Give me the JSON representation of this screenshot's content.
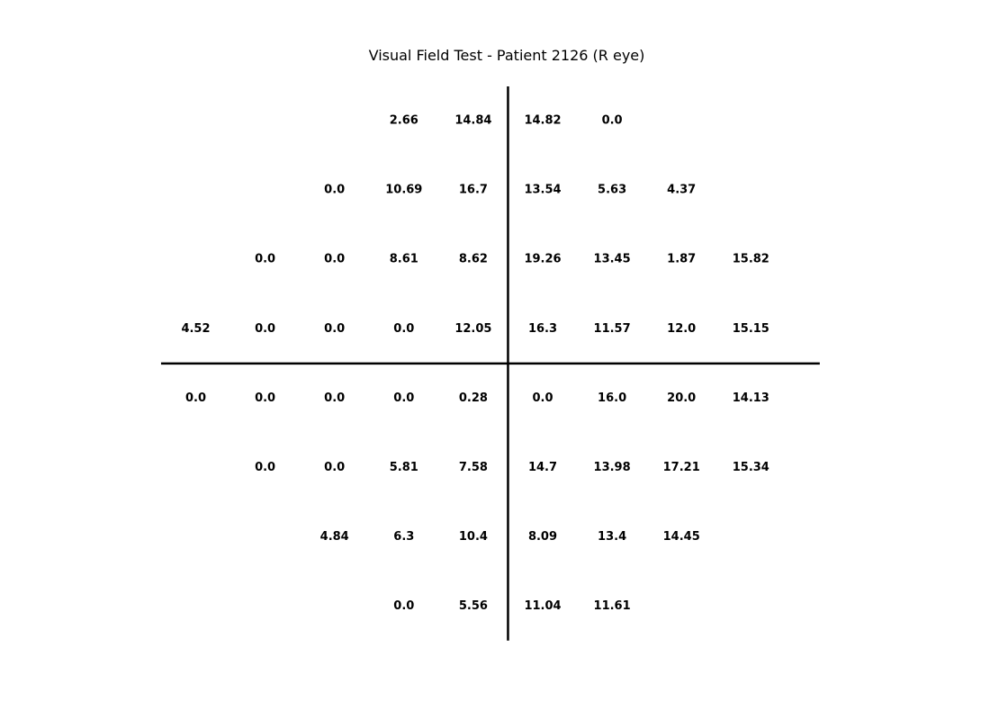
{
  "chart_data": {
    "type": "table",
    "title": "Visual Field Test - Patient 2126 (R eye)",
    "rows": [
      [
        null,
        null,
        null,
        "2.66",
        "14.84",
        "14.82",
        "0.0",
        null,
        null
      ],
      [
        null,
        null,
        "0.0",
        "10.69",
        "16.7",
        "13.54",
        "5.63",
        "4.37",
        null
      ],
      [
        null,
        "0.0",
        "0.0",
        "8.61",
        "8.62",
        "19.26",
        "13.45",
        "1.87",
        "15.82"
      ],
      [
        "4.52",
        "0.0",
        "0.0",
        "0.0",
        "12.05",
        "16.3",
        "11.57",
        "12.0",
        "15.15"
      ],
      [
        "0.0",
        "0.0",
        "0.0",
        "0.0",
        "0.28",
        "0.0",
        "16.0",
        "20.0",
        "14.13"
      ],
      [
        null,
        "0.0",
        "0.0",
        "5.81",
        "7.58",
        "14.7",
        "13.98",
        "17.21",
        "15.34"
      ],
      [
        null,
        null,
        "4.84",
        "6.3",
        "10.4",
        "8.09",
        "13.4",
        "14.45",
        null
      ],
      [
        null,
        null,
        null,
        "0.0",
        "5.56",
        "11.04",
        "11.61",
        null,
        null
      ]
    ],
    "axes_lines": true,
    "grid": false,
    "value_color": "#000000",
    "axis_color": "#000000"
  }
}
